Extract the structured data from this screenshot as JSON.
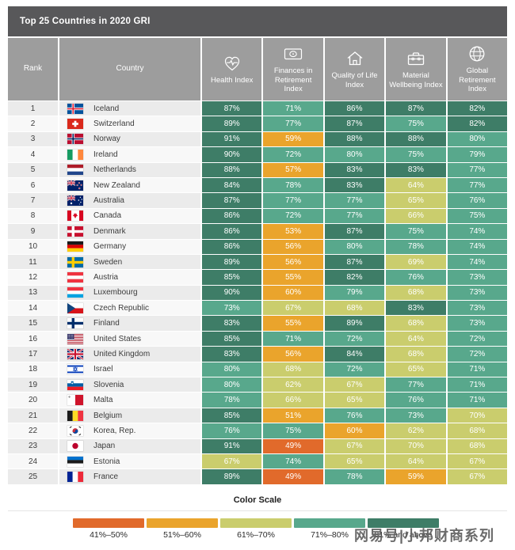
{
  "chart_data": {
    "type": "table",
    "title": "Top 25 Countries in 2020 GRI",
    "columns": [
      {
        "key": "rank",
        "label": "Rank"
      },
      {
        "key": "country",
        "label": "Country"
      },
      {
        "key": "health",
        "label": "Health Index",
        "icon": "health-icon"
      },
      {
        "key": "finances",
        "label": "Finances in Retirement Index",
        "icon": "finances-icon"
      },
      {
        "key": "quality",
        "label": "Quality of Life Index",
        "icon": "quality-icon"
      },
      {
        "key": "material",
        "label": "Material Wellbeing Index",
        "icon": "material-icon"
      },
      {
        "key": "global",
        "label": "Global Retirement Index",
        "icon": "global-icon"
      }
    ],
    "value_unit": "%",
    "rows": [
      {
        "rank": 1,
        "country": "Iceland",
        "flag": "iceland",
        "values": [
          87,
          71,
          86,
          87,
          82
        ]
      },
      {
        "rank": 2,
        "country": "Switzerland",
        "flag": "switzerland",
        "values": [
          89,
          77,
          87,
          75,
          82
        ]
      },
      {
        "rank": 3,
        "country": "Norway",
        "flag": "norway",
        "values": [
          91,
          59,
          88,
          88,
          80
        ]
      },
      {
        "rank": 4,
        "country": "Ireland",
        "flag": "ireland",
        "values": [
          90,
          72,
          80,
          75,
          79
        ]
      },
      {
        "rank": 5,
        "country": "Netherlands",
        "flag": "netherlands",
        "values": [
          88,
          57,
          83,
          83,
          77
        ]
      },
      {
        "rank": 6,
        "country": "New Zealand",
        "flag": "new-zealand",
        "values": [
          84,
          78,
          83,
          64,
          77
        ]
      },
      {
        "rank": 7,
        "country": "Australia",
        "flag": "australia",
        "values": [
          87,
          77,
          77,
          65,
          76
        ]
      },
      {
        "rank": 8,
        "country": "Canada",
        "flag": "canada",
        "values": [
          86,
          72,
          77,
          66,
          75
        ]
      },
      {
        "rank": 9,
        "country": "Denmark",
        "flag": "denmark",
        "values": [
          86,
          53,
          87,
          75,
          74
        ]
      },
      {
        "rank": 10,
        "country": "Germany",
        "flag": "germany",
        "values": [
          86,
          56,
          80,
          78,
          74
        ]
      },
      {
        "rank": 11,
        "country": "Sweden",
        "flag": "sweden",
        "values": [
          89,
          56,
          87,
          69,
          74
        ]
      },
      {
        "rank": 12,
        "country": "Austria",
        "flag": "austria",
        "values": [
          85,
          55,
          82,
          76,
          73
        ]
      },
      {
        "rank": 13,
        "country": "Luxembourg",
        "flag": "luxembourg",
        "values": [
          90,
          60,
          79,
          68,
          73
        ]
      },
      {
        "rank": 14,
        "country": "Czech Republic",
        "flag": "czech",
        "values": [
          73,
          67,
          68,
          83,
          73
        ]
      },
      {
        "rank": 15,
        "country": "Finland",
        "flag": "finland",
        "values": [
          83,
          55,
          89,
          68,
          73
        ]
      },
      {
        "rank": 16,
        "country": "United States",
        "flag": "united-states",
        "values": [
          85,
          71,
          72,
          64,
          72
        ]
      },
      {
        "rank": 17,
        "country": "United Kingdom",
        "flag": "united-kingdom",
        "values": [
          83,
          56,
          84,
          68,
          72
        ]
      },
      {
        "rank": 18,
        "country": "Israel",
        "flag": "israel",
        "values": [
          80,
          68,
          72,
          65,
          71
        ]
      },
      {
        "rank": 19,
        "country": "Slovenia",
        "flag": "slovenia",
        "values": [
          80,
          62,
          67,
          77,
          71
        ]
      },
      {
        "rank": 20,
        "country": "Malta",
        "flag": "malta",
        "values": [
          78,
          66,
          65,
          76,
          71
        ]
      },
      {
        "rank": 21,
        "country": "Belgium",
        "flag": "belgium",
        "values": [
          85,
          51,
          76,
          73,
          70
        ]
      },
      {
        "rank": 22,
        "country": "Korea, Rep.",
        "flag": "korea",
        "values": [
          76,
          75,
          60,
          62,
          68
        ]
      },
      {
        "rank": 23,
        "country": "Japan",
        "flag": "japan",
        "values": [
          91,
          49,
          67,
          70,
          68
        ]
      },
      {
        "rank": 24,
        "country": "Estonia",
        "flag": "estonia",
        "values": [
          67,
          74,
          65,
          64,
          67
        ]
      },
      {
        "rank": 25,
        "country": "France",
        "flag": "france",
        "values": [
          89,
          49,
          78,
          59,
          67
        ]
      }
    ],
    "color_scale": {
      "title": "Color Scale",
      "bands": [
        {
          "label": "41%–50%",
          "min": 41,
          "max": 50,
          "color": "#E16A2B"
        },
        {
          "label": "51%–60%",
          "min": 51,
          "max": 60,
          "color": "#EAA42C"
        },
        {
          "label": "61%–70%",
          "min": 61,
          "max": 70,
          "color": "#CACD6D"
        },
        {
          "label": "71%–80%",
          "min": 71,
          "max": 80,
          "color": "#58A88C"
        },
        {
          "label": "81% and above",
          "min": 81,
          "max": 100,
          "color": "#3E7D67"
        }
      ]
    }
  },
  "colors": {
    "title_bar": "#58585A",
    "column_header": "#9D9D9D",
    "row_alt": "#EBEBEB",
    "row_base": "#F8F8F8"
  },
  "watermark": "网易号|小邦财商系列"
}
